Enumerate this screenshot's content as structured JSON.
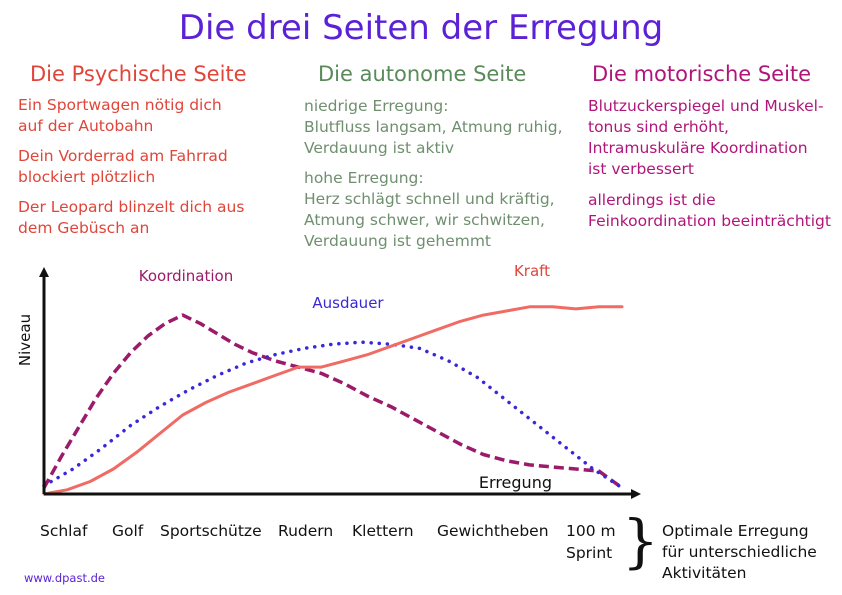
{
  "title": "Die drei Seiten der Erregung",
  "columns": {
    "psych": {
      "heading": "Die Psychische Seite",
      "paragraphs": [
        [
          "Ein Sportwagen nötig dich",
          "auf der Autobahn"
        ],
        [
          "Dein Vorderrad am Fahrrad",
          "blockiert plötzlich"
        ],
        [
          "Der Leopard blinzelt dich aus",
          "dem Gebüsch an"
        ]
      ]
    },
    "auto": {
      "heading": "Die autonome Seite",
      "paragraphs": [
        [
          "niedrige Erregung:",
          "Blutfluss langsam, Atmung ruhig,",
          "Verdauung ist aktiv"
        ],
        [
          "hohe Erregung:",
          "Herz schlägt schnell und kräftig,",
          "Atmung schwer, wir schwitzen,",
          "Verdauung ist gehemmt"
        ]
      ]
    },
    "motor": {
      "heading": "Die motorische Seite",
      "paragraphs": [
        [
          "Blutzuckerspiegel und Muskel-",
          "tonus sind erhöht,",
          "Intramuskuläre Koordination",
          "ist verbessert"
        ],
        [
          "allerdings ist die",
          "Feinkoordination beeinträchtigt"
        ]
      ]
    }
  },
  "activities": [
    "Schlaf",
    "Golf",
    "Sportschütze",
    "Rudern",
    "Klettern",
    "Gewichtheben",
    "100 m",
    "Sprint"
  ],
  "optimal_note": [
    "Optimale Erregung",
    "für unterschiedliche",
    "Aktivitäten"
  ],
  "website": "www.dpast.de",
  "chart_data": {
    "type": "line",
    "xlabel": "Erregung",
    "ylabel": "Niveau",
    "xlim": [
      0,
      100
    ],
    "ylim": [
      0,
      100
    ],
    "grid": false,
    "legend": "inline labels",
    "series": [
      {
        "name": "Koordination",
        "style": "dashed",
        "color": "#9b1a6a",
        "x": [
          0,
          3,
          6,
          9,
          12,
          15,
          18,
          21,
          24,
          27,
          30,
          33,
          36,
          40,
          44,
          48,
          52,
          56,
          60,
          64,
          68,
          72,
          76,
          80,
          84,
          88,
          92,
          96,
          100
        ],
        "y": [
          3,
          18,
          32,
          46,
          58,
          68,
          76,
          82,
          86,
          82,
          77,
          72,
          68,
          64,
          61,
          58,
          53,
          47,
          42,
          36,
          30,
          24,
          19,
          16,
          14,
          13,
          12,
          11,
          3
        ]
      },
      {
        "name": "Ausdauer",
        "style": "dotted",
        "color": "#3a28d8",
        "x": [
          0,
          5,
          10,
          15,
          20,
          25,
          30,
          35,
          40,
          45,
          50,
          55,
          60,
          65,
          70,
          75,
          80,
          85,
          90,
          95,
          100
        ],
        "y": [
          4,
          12,
          22,
          33,
          42,
          50,
          57,
          63,
          67,
          70,
          72,
          73,
          72,
          70,
          64,
          56,
          45,
          34,
          23,
          12,
          3
        ]
      },
      {
        "name": "Kraft",
        "style": "solid",
        "color": "#f06b63",
        "x": [
          0,
          4,
          8,
          12,
          16,
          20,
          24,
          28,
          32,
          36,
          40,
          44,
          48,
          52,
          56,
          60,
          64,
          68,
          72,
          76,
          80,
          84,
          88,
          92,
          96,
          100
        ],
        "y": [
          0,
          2,
          6,
          12,
          20,
          29,
          38,
          44,
          49,
          53,
          57,
          61,
          61,
          64,
          67,
          71,
          75,
          79,
          83,
          86,
          88,
          90,
          90,
          89,
          90,
          90
        ]
      }
    ]
  }
}
